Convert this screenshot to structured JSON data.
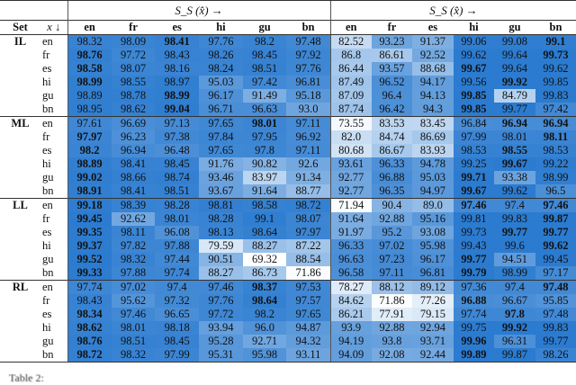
{
  "header": {
    "set_label": "Set",
    "x_label": "x ↓",
    "left_group": "S_S (x̂) →",
    "right_group": "S_S (x̂) →",
    "columns": [
      "en",
      "fr",
      "es",
      "hi",
      "gu",
      "bn"
    ]
  },
  "colors": {
    "high": "#2b7bd0",
    "low": "#ffffff"
  },
  "sets": [
    {
      "name": "IL",
      "rows": [
        {
          "x": "en",
          "left": [
            "98.32",
            "98.09",
            "98.41",
            "97.76",
            "98.2",
            "97.48"
          ],
          "lb": [
            2
          ],
          "right": [
            "82.52",
            "93.23",
            "91.37",
            "99.06",
            "99.08",
            "99.1"
          ],
          "rb": [
            5
          ]
        },
        {
          "x": "fr",
          "left": [
            "98.76",
            "97.72",
            "98.43",
            "98.26",
            "98.45",
            "97.92"
          ],
          "lb": [
            0
          ],
          "right": [
            "86.8",
            "86.61",
            "92.52",
            "99.62",
            "99.64",
            "99.73"
          ],
          "rb": [
            5
          ]
        },
        {
          "x": "es",
          "left": [
            "98.58",
            "98.07",
            "98.16",
            "98.24",
            "98.51",
            "97.76"
          ],
          "lb": [
            0
          ],
          "right": [
            "86.44",
            "93.57",
            "88.68",
            "99.67",
            "99.64",
            "99.62"
          ],
          "rb": [
            3
          ]
        },
        {
          "x": "hi",
          "left": [
            "98.99",
            "98.55",
            "98.97",
            "95.03",
            "97.42",
            "96.81"
          ],
          "lb": [
            0
          ],
          "right": [
            "87.49",
            "96.52",
            "94.17",
            "99.56",
            "99.92",
            "99.85"
          ],
          "rb": [
            4
          ]
        },
        {
          "x": "gu",
          "left": [
            "98.89",
            "98.78",
            "98.99",
            "96.17",
            "91.49",
            "95.18"
          ],
          "lb": [
            2
          ],
          "right": [
            "87.09",
            "96.4",
            "94.13",
            "99.85",
            "84.79",
            "99.83"
          ],
          "rb": [
            3
          ]
        },
        {
          "x": "bn",
          "left": [
            "98.95",
            "98.62",
            "99.04",
            "96.71",
            "96.63",
            "93.0"
          ],
          "lb": [
            2
          ],
          "right": [
            "87.74",
            "96.42",
            "94.3",
            "99.85",
            "99.77",
            "97.42"
          ],
          "rb": [
            3
          ]
        }
      ]
    },
    {
      "name": "ML",
      "rows": [
        {
          "x": "en",
          "left": [
            "97.61",
            "96.69",
            "97.13",
            "97.65",
            "98.01",
            "97.11"
          ],
          "lb": [
            4
          ],
          "right": [
            "73.55",
            "83.53",
            "83.45",
            "96.84",
            "96.94",
            "96.94"
          ],
          "rb": [
            4,
            5
          ]
        },
        {
          "x": "fr",
          "left": [
            "97.97",
            "96.23",
            "97.38",
            "97.84",
            "97.95",
            "96.92"
          ],
          "lb": [
            0
          ],
          "right": [
            "82.0",
            "84.74",
            "86.69",
            "97.99",
            "98.01",
            "98.11"
          ],
          "rb": [
            5
          ]
        },
        {
          "x": "es",
          "left": [
            "98.2",
            "96.94",
            "96.48",
            "97.65",
            "97.8",
            "97.11"
          ],
          "lb": [
            0
          ],
          "right": [
            "80.68",
            "86.67",
            "83.93",
            "98.53",
            "98.55",
            "98.53"
          ],
          "rb": [
            4
          ]
        },
        {
          "x": "hi",
          "left": [
            "98.89",
            "98.41",
            "98.45",
            "91.76",
            "90.82",
            "92.6"
          ],
          "lb": [
            0
          ],
          "right": [
            "93.61",
            "96.33",
            "94.78",
            "99.25",
            "99.67",
            "99.22"
          ],
          "rb": [
            4
          ]
        },
        {
          "x": "gu",
          "left": [
            "99.02",
            "98.66",
            "98.74",
            "93.46",
            "83.97",
            "91.34"
          ],
          "lb": [
            0
          ],
          "right": [
            "92.77",
            "96.88",
            "95.03",
            "99.71",
            "93.38",
            "98.99"
          ],
          "rb": [
            3
          ]
        },
        {
          "x": "bn",
          "left": [
            "98.91",
            "98.41",
            "98.51",
            "93.67",
            "91.64",
            "88.77"
          ],
          "lb": [
            0
          ],
          "right": [
            "92.77",
            "96.35",
            "94.97",
            "99.67",
            "99.62",
            "96.5"
          ],
          "rb": [
            3
          ]
        }
      ]
    },
    {
      "name": "LL",
      "rows": [
        {
          "x": "en",
          "left": [
            "99.18",
            "98.39",
            "98.28",
            "98.81",
            "98.58",
            "98.72"
          ],
          "lb": [
            0
          ],
          "right": [
            "71.94",
            "90.4",
            "89.0",
            "97.46",
            "97.4",
            "97.46"
          ],
          "rb": [
            3,
            5
          ]
        },
        {
          "x": "fr",
          "left": [
            "99.45",
            "92.62",
            "98.01",
            "98.28",
            "99.1",
            "98.07"
          ],
          "lb": [
            0
          ],
          "right": [
            "91.64",
            "92.88",
            "95.16",
            "99.81",
            "99.83",
            "99.87"
          ],
          "rb": [
            5
          ]
        },
        {
          "x": "es",
          "left": [
            "99.35",
            "98.11",
            "96.08",
            "98.13",
            "98.64",
            "97.97"
          ],
          "lb": [
            0
          ],
          "right": [
            "91.97",
            "95.2",
            "93.08",
            "99.73",
            "99.77",
            "99.77"
          ],
          "rb": [
            4,
            5
          ]
        },
        {
          "x": "hi",
          "left": [
            "99.37",
            "97.82",
            "97.88",
            "79.59",
            "88.27",
            "87.22"
          ],
          "lb": [
            0
          ],
          "right": [
            "96.33",
            "97.02",
            "95.98",
            "99.43",
            "99.6",
            "99.62"
          ],
          "rb": [
            5
          ]
        },
        {
          "x": "gu",
          "left": [
            "99.52",
            "98.32",
            "97.44",
            "90.51",
            "69.32",
            "88.54"
          ],
          "lb": [
            0
          ],
          "right": [
            "96.63",
            "97.23",
            "96.17",
            "99.77",
            "94.51",
            "99.45"
          ],
          "rb": [
            3
          ]
        },
        {
          "x": "bn",
          "left": [
            "99.33",
            "97.88",
            "97.74",
            "88.27",
            "86.73",
            "71.86"
          ],
          "lb": [
            0
          ],
          "right": [
            "96.58",
            "97.11",
            "96.81",
            "99.79",
            "98.99",
            "97.17"
          ],
          "rb": [
            3
          ]
        }
      ]
    },
    {
      "name": "RL",
      "rows": [
        {
          "x": "en",
          "left": [
            "97.74",
            "97.02",
            "97.4",
            "97.46",
            "98.37",
            "97.53"
          ],
          "lb": [
            4
          ],
          "right": [
            "78.27",
            "88.12",
            "89.12",
            "97.36",
            "97.4",
            "97.48"
          ],
          "rb": [
            5
          ]
        },
        {
          "x": "fr",
          "left": [
            "98.43",
            "95.62",
            "97.32",
            "97.76",
            "98.64",
            "97.57"
          ],
          "lb": [
            4
          ],
          "right": [
            "84.62",
            "71.86",
            "77.26",
            "96.88",
            "96.67",
            "95.85"
          ],
          "rb": [
            3
          ]
        },
        {
          "x": "es",
          "left": [
            "98.34",
            "97.46",
            "96.65",
            "97.72",
            "98.2",
            "97.65"
          ],
          "lb": [
            0
          ],
          "right": [
            "86.21",
            "77.91",
            "79.15",
            "97.74",
            "97.8",
            "97.48"
          ],
          "rb": [
            4
          ]
        },
        {
          "x": "hi",
          "left": [
            "98.62",
            "98.01",
            "98.18",
            "93.94",
            "96.0",
            "94.87"
          ],
          "lb": [
            0
          ],
          "right": [
            "93.9",
            "92.88",
            "92.94",
            "99.75",
            "99.92",
            "99.83"
          ],
          "rb": [
            4
          ]
        },
        {
          "x": "gu",
          "left": [
            "98.76",
            "98.51",
            "98.45",
            "95.28",
            "92.71",
            "94.32"
          ],
          "lb": [
            0
          ],
          "right": [
            "94.19",
            "93.8",
            "93.71",
            "99.96",
            "96.31",
            "99.77"
          ],
          "rb": [
            3
          ]
        },
        {
          "x": "bn",
          "left": [
            "98.72",
            "98.32",
            "97.99",
            "95.31",
            "95.98",
            "93.11"
          ],
          "lb": [
            0
          ],
          "right": [
            "94.09",
            "92.08",
            "92.44",
            "99.89",
            "99.87",
            "98.26"
          ],
          "rb": [
            3
          ]
        }
      ]
    }
  ],
  "caption": "Table 2:"
}
